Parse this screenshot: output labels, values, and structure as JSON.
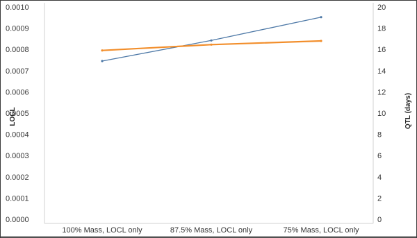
{
  "chart_data": {
    "type": "line",
    "categories": [
      "100% Mass, LOCL only",
      "87.5% Mass, LOCL only",
      "75% Mass, LOCL only"
    ],
    "series": [
      {
        "axis": "left",
        "color": "#4e79a7",
        "values": [
          0.000745,
          0.000842,
          0.000952
        ]
      },
      {
        "axis": "right",
        "color": "#f28e2b",
        "values": [
          15.9,
          16.45,
          16.8
        ]
      }
    ],
    "ylabel": "LOCL",
    "ylabel_right": "QTL (days)",
    "ylim": [
      0,
      0.001
    ],
    "ylim_right": [
      0,
      20
    ],
    "yticks": [
      "0.0000",
      "0.0001",
      "0.0002",
      "0.0003",
      "0.0004",
      "0.0005",
      "0.0006",
      "0.0007",
      "0.0008",
      "0.0009",
      "0.0010"
    ],
    "yticks_right": [
      "0",
      "2",
      "4",
      "6",
      "8",
      "10",
      "12",
      "14",
      "16",
      "18",
      "20"
    ],
    "grid": false,
    "legend": "none"
  }
}
